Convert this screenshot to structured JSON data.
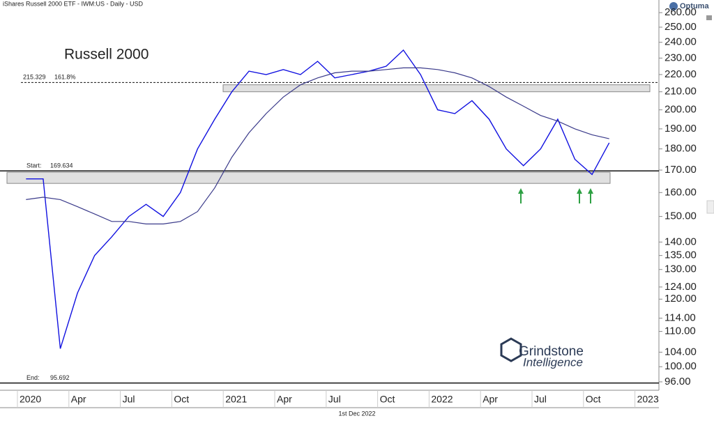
{
  "chart_data": {
    "type": "line",
    "header": "iShares Russell 2000 ETF - IWM:US - Daily - USD",
    "title": "Russell 2000",
    "footer": "1st Dec 2022",
    "brand": "Optuma",
    "watermark": [
      "Grindstone",
      "Intelligence"
    ],
    "log_scale": true,
    "x": [
      "2020-01",
      "2020-02",
      "2020-03",
      "2020-04",
      "2020-05",
      "2020-06",
      "2020-07",
      "2020-08",
      "2020-09",
      "2020-10",
      "2020-11",
      "2020-12",
      "2021-01",
      "2021-02",
      "2021-03",
      "2021-04",
      "2021-05",
      "2021-06",
      "2021-07",
      "2021-08",
      "2021-09",
      "2021-10",
      "2021-11",
      "2021-12",
      "2022-01",
      "2022-02",
      "2022-03",
      "2022-04",
      "2022-05",
      "2022-06",
      "2022-07",
      "2022-08",
      "2022-09",
      "2022-10",
      "2022-11"
    ],
    "series": [
      {
        "color": "#1010e0",
        "values": [
          166,
          166,
          105,
          122,
          135,
          142,
          150,
          155,
          150,
          160,
          180,
          195,
          210,
          222,
          220,
          223,
          220,
          228,
          218,
          220,
          222,
          225,
          235,
          220,
          200,
          198,
          205,
          195,
          180,
          172,
          180,
          195,
          175,
          168,
          183
        ]
      },
      {
        "color": "#3a3a8a",
        "values": [
          157,
          158,
          157,
          154,
          151,
          148,
          148,
          147,
          147,
          148,
          152,
          162,
          176,
          188,
          198,
          207,
          214,
          218,
          221,
          222,
          222,
          223,
          224,
          224,
          223,
          221,
          218,
          213,
          207,
          202,
          197,
          194,
          190,
          187,
          185
        ]
      }
    ],
    "levels": [
      {
        "label": "Start:",
        "value": 169.634
      },
      {
        "label": "End:",
        "value": 95.692
      },
      {
        "value": 215.329,
        "ratio": "161.8%"
      }
    ],
    "zones": [
      {
        "low": 210,
        "high": 214
      },
      {
        "low": 164,
        "high": 169
      }
    ],
    "ylim": [
      94.2,
      265
    ],
    "yticks": [
      {
        "value": 96,
        "label": "96.00"
      },
      {
        "value": 100,
        "label": "100.00"
      },
      {
        "value": 104,
        "label": "104.00"
      },
      {
        "value": 110,
        "label": "110.00"
      },
      {
        "value": 114,
        "label": "114.00"
      },
      {
        "value": 120,
        "label": "120.00"
      },
      {
        "value": 124,
        "label": "124.00"
      },
      {
        "value": 130,
        "label": "130.00"
      },
      {
        "value": 135,
        "label": "135.00"
      },
      {
        "value": 140,
        "label": "140.00"
      },
      {
        "value": 150,
        "label": "150.00"
      },
      {
        "value": 160,
        "label": "160.00"
      },
      {
        "value": 170,
        "label": "170.00"
      },
      {
        "value": 180,
        "label": "180.00"
      },
      {
        "value": 190,
        "label": "190.00"
      },
      {
        "value": 200,
        "label": "200.00"
      },
      {
        "value": 210,
        "label": "210.00"
      },
      {
        "value": 220,
        "label": "220.00"
      },
      {
        "value": 230,
        "label": "230.00"
      },
      {
        "value": 240,
        "label": "240.00"
      },
      {
        "value": 250,
        "label": "250.00"
      },
      {
        "value": 260,
        "label": "260.00"
      }
    ],
    "xticks": [
      {
        "value": "2020-01",
        "label": "2020"
      },
      {
        "value": "2020-04",
        "label": "Apr"
      },
      {
        "value": "2020-07",
        "label": "Jul"
      },
      {
        "value": "2020-10",
        "label": "Oct"
      },
      {
        "value": "2021-01",
        "label": "2021"
      },
      {
        "value": "2021-04",
        "label": "Apr"
      },
      {
        "value": "2021-07",
        "label": "Jul"
      },
      {
        "value": "2021-10",
        "label": "Oct"
      },
      {
        "value": "2022-01",
        "label": "2022"
      },
      {
        "value": "2022-04",
        "label": "Apr"
      },
      {
        "value": "2022-07",
        "label": "Jul"
      },
      {
        "value": "2022-10",
        "label": "Oct"
      },
      {
        "value": "2023-01",
        "label": "2023"
      }
    ]
  }
}
